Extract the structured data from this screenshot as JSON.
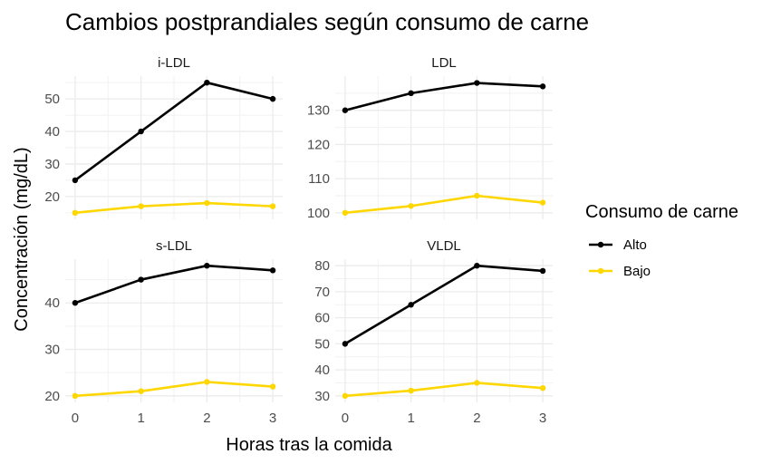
{
  "chart_data": {
    "type": "line",
    "title": "Cambios postprandiales según consumo de carne",
    "xlabel": "Horas tras la comida",
    "ylabel": "Concentración (mg/dL)",
    "legend": {
      "title": "Consumo de carne",
      "position": "right",
      "entries": [
        {
          "name": "Alto",
          "color": "#000000"
        },
        {
          "name": "Bajo",
          "color": "#FFD700"
        }
      ]
    },
    "x": [
      0,
      1,
      2,
      3
    ],
    "x_ticks": [
      "0",
      "1",
      "2",
      "3"
    ],
    "grid": true,
    "panels": [
      {
        "name": "i-LDL",
        "ylim": [
          13,
          57
        ],
        "y_ticks": [
          20,
          30,
          40,
          50
        ],
        "series": [
          {
            "name": "Alto",
            "values": [
              25,
              40,
              55,
              50
            ]
          },
          {
            "name": "Bajo",
            "values": [
              15,
              17,
              18,
              17
            ]
          }
        ]
      },
      {
        "name": "LDL",
        "ylim": [
          98.1,
          140
        ],
        "y_ticks": [
          100,
          110,
          120,
          130
        ],
        "series": [
          {
            "name": "Alto",
            "values": [
              130,
              135,
              138,
              137
            ]
          },
          {
            "name": "Bajo",
            "values": [
              100,
              102,
              105,
              103
            ]
          }
        ]
      },
      {
        "name": "s-LDL",
        "ylim": [
          18.6,
          49.4
        ],
        "y_ticks": [
          20,
          30,
          40
        ],
        "series": [
          {
            "name": "Alto",
            "values": [
              40,
              45,
              48,
              47
            ]
          },
          {
            "name": "Bajo",
            "values": [
              20,
              21,
              23,
              22
            ]
          }
        ]
      },
      {
        "name": "VLDL",
        "ylim": [
          27.5,
          82.5
        ],
        "y_ticks": [
          30,
          40,
          50,
          60,
          70,
          80
        ],
        "series": [
          {
            "name": "Alto",
            "values": [
              50,
              65,
              80,
              78
            ]
          },
          {
            "name": "Bajo",
            "values": [
              30,
              32,
              35,
              33
            ]
          }
        ]
      }
    ]
  }
}
